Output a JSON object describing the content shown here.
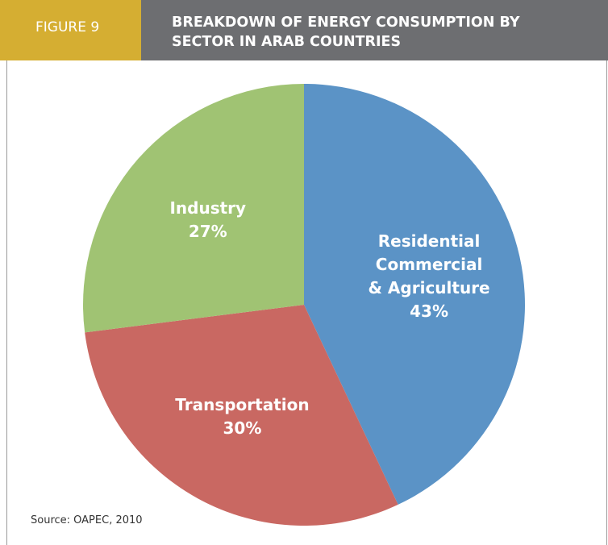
{
  "figure_label": "FIGURE 9",
  "chart_data": {
    "type": "pie",
    "title": "BREAKDOWN OF ENERGY CONSUMPTION BY\nSECTOR IN ARAB COUNTRIES",
    "categories": [
      "Residential\nCommercial\n& Agriculture",
      "Transportation",
      "Industry"
    ],
    "values": [
      43,
      30,
      27
    ],
    "value_labels": [
      "43%",
      "30%",
      "27%"
    ],
    "colors": [
      "#5b93c6",
      "#c96862",
      "#a0c373"
    ],
    "source": "Source: OAPEC, 2010"
  }
}
